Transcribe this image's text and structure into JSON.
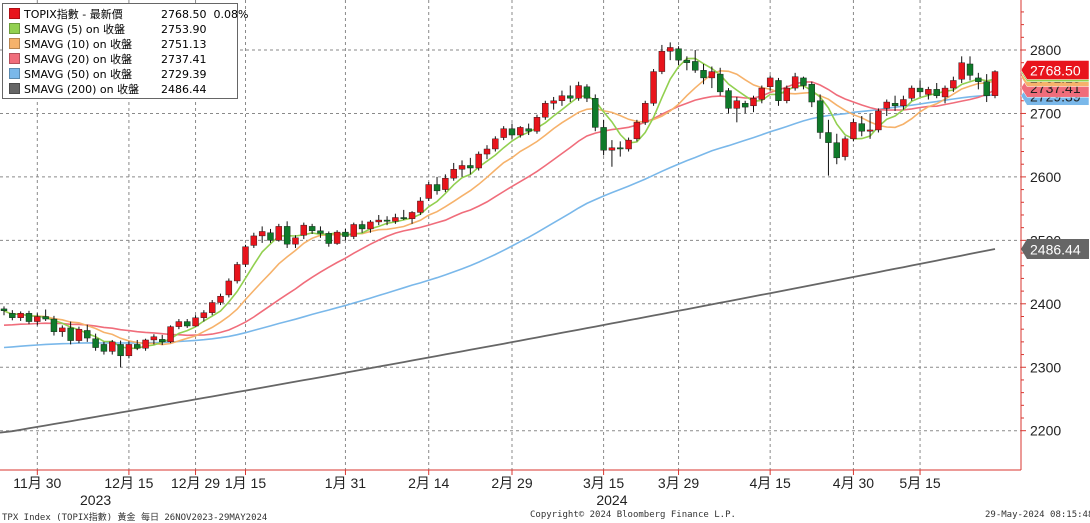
{
  "legend": {
    "rows": [
      {
        "name": "TOPIX指數 - 最新價",
        "value": "2768.50",
        "extra": "0.08%",
        "color": "#e8141c"
      },
      {
        "name": "SMAVG (5)  on 收盤",
        "value": "2753.90",
        "color": "#92d050"
      },
      {
        "name": "SMAVG (10)  on 收盤",
        "value": "2751.13",
        "color": "#f6b26b"
      },
      {
        "name": "SMAVG (20)  on 收盤",
        "value": "2737.41",
        "color": "#f06d7b"
      },
      {
        "name": "SMAVG (50)  on 收盤",
        "value": "2729.39",
        "color": "#7ab8ea"
      },
      {
        "name": "SMAVG (200)  on 收盤",
        "value": "2486.44",
        "color": "#666666"
      }
    ]
  },
  "footer": {
    "left": "TPX Index (TOPIX指數) 黃金  每日 26NOV2023-29MAY2024",
    "center": "Copyright© 2024 Bloomberg Finance L.P.",
    "right": "29-May-2024 08:15:48"
  },
  "chart_data": {
    "type": "candlestick",
    "ylim": [
      2140,
      2880
    ],
    "y_ticks": [
      2200,
      2300,
      2400,
      2500,
      2600,
      2700,
      2800
    ],
    "grid": true,
    "x_ticks": [
      {
        "i": 4,
        "label": "11月 30"
      },
      {
        "i": 15,
        "label": "12月 15"
      },
      {
        "i": 23,
        "label": "12月 29"
      },
      {
        "i": 29,
        "label": "1月 15"
      },
      {
        "i": 41,
        "label": "1月 31"
      },
      {
        "i": 51,
        "label": "2月 14"
      },
      {
        "i": 61,
        "label": "2月 29"
      },
      {
        "i": 72,
        "label": "3月 15"
      },
      {
        "i": 81,
        "label": "3月 29"
      },
      {
        "i": 92,
        "label": "4月 15"
      },
      {
        "i": 102,
        "label": "4月 30"
      },
      {
        "i": 110,
        "label": "5月 15"
      }
    ],
    "year_labels": [
      {
        "i": 11,
        "label": "2023"
      },
      {
        "i": 73,
        "label": "2024"
      }
    ],
    "value_tags": [
      {
        "value": 2768.5,
        "label": "2768.50",
        "color": "#e8141c"
      },
      {
        "value": 2753.9,
        "label": "2753.90",
        "color": "#92d050"
      },
      {
        "value": 2751.13,
        "label": "2751.13",
        "color": "#f6b26b"
      },
      {
        "value": 2737.41,
        "label": "2737.41",
        "color": "#f06d7b"
      },
      {
        "value": 2729.39,
        "label": "2729.39",
        "color": "#7ab8ea"
      },
      {
        "value": 2486.44,
        "label": "2486.44",
        "color": "#666666"
      }
    ],
    "candles": [
      [
        2392,
        2396,
        2382,
        2389
      ],
      [
        2385,
        2390,
        2374,
        2378
      ],
      [
        2378,
        2388,
        2373,
        2385
      ],
      [
        2385,
        2389,
        2368,
        2372
      ],
      [
        2372,
        2385,
        2366,
        2380
      ],
      [
        2380,
        2391,
        2373,
        2376
      ],
      [
        2376,
        2381,
        2350,
        2356
      ],
      [
        2356,
        2366,
        2348,
        2362
      ],
      [
        2362,
        2372,
        2336,
        2342
      ],
      [
        2342,
        2364,
        2338,
        2360
      ],
      [
        2358,
        2367,
        2340,
        2346
      ],
      [
        2345,
        2353,
        2326,
        2331
      ],
      [
        2336,
        2340,
        2320,
        2325
      ],
      [
        2325,
        2343,
        2320,
        2340
      ],
      [
        2336,
        2342,
        2300,
        2318
      ],
      [
        2318,
        2341,
        2314,
        2336
      ],
      [
        2336,
        2343,
        2327,
        2330
      ],
      [
        2330,
        2345,
        2326,
        2343
      ],
      [
        2343,
        2352,
        2336,
        2348
      ],
      [
        2344,
        2351,
        2335,
        2340
      ],
      [
        2340,
        2366,
        2338,
        2364
      ],
      [
        2364,
        2376,
        2360,
        2372
      ],
      [
        2372,
        2376,
        2362,
        2365
      ],
      [
        2365,
        2382,
        2364,
        2378
      ],
      [
        2378,
        2390,
        2372,
        2386
      ],
      [
        2386,
        2406,
        2382,
        2402
      ],
      [
        2402,
        2416,
        2398,
        2412
      ],
      [
        2414,
        2440,
        2410,
        2436
      ],
      [
        2436,
        2466,
        2432,
        2462
      ],
      [
        2462,
        2493,
        2458,
        2490
      ],
      [
        2492,
        2512,
        2488,
        2507
      ],
      [
        2507,
        2522,
        2496,
        2514
      ],
      [
        2512,
        2518,
        2496,
        2500
      ],
      [
        2500,
        2526,
        2498,
        2522
      ],
      [
        2522,
        2530,
        2488,
        2494
      ],
      [
        2494,
        2508,
        2488,
        2504
      ],
      [
        2508,
        2528,
        2502,
        2524
      ],
      [
        2522,
        2526,
        2510,
        2515
      ],
      [
        2515,
        2522,
        2504,
        2511
      ],
      [
        2511,
        2514,
        2490,
        2495
      ],
      [
        2495,
        2516,
        2493,
        2513
      ],
      [
        2513,
        2518,
        2500,
        2506
      ],
      [
        2506,
        2528,
        2502,
        2525
      ],
      [
        2525,
        2531,
        2512,
        2518
      ],
      [
        2518,
        2532,
        2512,
        2529
      ],
      [
        2529,
        2540,
        2524,
        2532
      ],
      [
        2532,
        2538,
        2524,
        2530
      ],
      [
        2530,
        2542,
        2526,
        2536
      ],
      [
        2536,
        2548,
        2532,
        2534
      ],
      [
        2534,
        2546,
        2526,
        2544
      ],
      [
        2544,
        2568,
        2540,
        2562
      ],
      [
        2566,
        2592,
        2562,
        2588
      ],
      [
        2588,
        2600,
        2572,
        2578
      ],
      [
        2580,
        2604,
        2576,
        2598
      ],
      [
        2598,
        2622,
        2594,
        2612
      ],
      [
        2612,
        2626,
        2600,
        2618
      ],
      [
        2618,
        2630,
        2604,
        2614
      ],
      [
        2614,
        2640,
        2610,
        2636
      ],
      [
        2636,
        2650,
        2628,
        2644
      ],
      [
        2644,
        2664,
        2640,
        2660
      ],
      [
        2662,
        2680,
        2658,
        2676
      ],
      [
        2676,
        2684,
        2660,
        2666
      ],
      [
        2666,
        2680,
        2662,
        2678
      ],
      [
        2676,
        2684,
        2666,
        2672
      ],
      [
        2672,
        2698,
        2668,
        2694
      ],
      [
        2694,
        2720,
        2690,
        2716
      ],
      [
        2716,
        2726,
        2706,
        2720
      ],
      [
        2720,
        2736,
        2712,
        2728
      ],
      [
        2728,
        2744,
        2718,
        2724
      ],
      [
        2724,
        2750,
        2720,
        2744
      ],
      [
        2742,
        2746,
        2718,
        2724
      ],
      [
        2724,
        2730,
        2672,
        2678
      ],
      [
        2678,
        2690,
        2634,
        2642
      ],
      [
        2642,
        2658,
        2616,
        2646
      ],
      [
        2646,
        2656,
        2632,
        2644
      ],
      [
        2644,
        2662,
        2640,
        2658
      ],
      [
        2660,
        2690,
        2656,
        2686
      ],
      [
        2686,
        2720,
        2682,
        2716
      ],
      [
        2716,
        2770,
        2712,
        2766
      ],
      [
        2766,
        2808,
        2762,
        2798
      ],
      [
        2798,
        2812,
        2784,
        2804
      ],
      [
        2802,
        2806,
        2776,
        2784
      ],
      [
        2784,
        2790,
        2768,
        2780
      ],
      [
        2782,
        2800,
        2764,
        2768
      ],
      [
        2768,
        2778,
        2746,
        2756
      ],
      [
        2756,
        2774,
        2740,
        2766
      ],
      [
        2762,
        2772,
        2728,
        2734
      ],
      [
        2736,
        2740,
        2700,
        2708
      ],
      [
        2708,
        2726,
        2686,
        2720
      ],
      [
        2716,
        2720,
        2700,
        2710
      ],
      [
        2712,
        2728,
        2702,
        2724
      ],
      [
        2722,
        2744,
        2716,
        2740
      ],
      [
        2742,
        2760,
        2736,
        2756
      ],
      [
        2752,
        2756,
        2712,
        2720
      ],
      [
        2720,
        2744,
        2716,
        2740
      ],
      [
        2740,
        2764,
        2736,
        2758
      ],
      [
        2756,
        2758,
        2738,
        2744
      ],
      [
        2746,
        2750,
        2710,
        2718
      ],
      [
        2720,
        2730,
        2660,
        2670
      ],
      [
        2670,
        2690,
        2602,
        2654
      ],
      [
        2654,
        2668,
        2620,
        2630
      ],
      [
        2632,
        2664,
        2626,
        2660
      ],
      [
        2660,
        2692,
        2656,
        2686
      ],
      [
        2684,
        2696,
        2664,
        2672
      ],
      [
        2672,
        2700,
        2660,
        2674
      ],
      [
        2674,
        2708,
        2670,
        2704
      ],
      [
        2708,
        2722,
        2696,
        2718
      ],
      [
        2716,
        2728,
        2704,
        2712
      ],
      [
        2712,
        2728,
        2706,
        2722
      ],
      [
        2724,
        2744,
        2720,
        2740
      ],
      [
        2740,
        2752,
        2726,
        2734
      ],
      [
        2730,
        2742,
        2722,
        2738
      ],
      [
        2738,
        2748,
        2724,
        2728
      ],
      [
        2726,
        2744,
        2716,
        2740
      ],
      [
        2740,
        2758,
        2734,
        2752
      ],
      [
        2754,
        2790,
        2748,
        2780
      ],
      [
        2778,
        2790,
        2752,
        2760
      ],
      [
        2756,
        2764,
        2738,
        2750
      ],
      [
        2750,
        2762,
        2718,
        2728
      ],
      [
        2728,
        2768,
        2724,
        2766
      ]
    ],
    "sma5_tail": 2753.9,
    "sma10_tail": 2751.13,
    "sma20_tail": 2737.41,
    "sma50_tail": 2729.39,
    "sma200": {
      "start": 2197,
      "end": 2486.44
    }
  }
}
